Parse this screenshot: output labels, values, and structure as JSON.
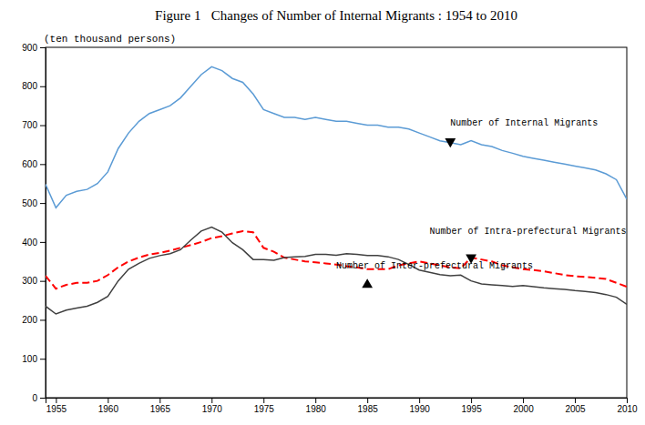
{
  "chart_data": {
    "type": "line",
    "title": "Figure 1   Changes of Number of Internal Migrants : 1954 to 2010",
    "ylabel": "(ten thousand persons)",
    "xlim": [
      1954,
      2010
    ],
    "xticks": [
      1955,
      1960,
      1965,
      1970,
      1975,
      1980,
      1985,
      1990,
      1995,
      2000,
      2005,
      2010
    ],
    "ylim": [
      0,
      900
    ],
    "yticks": [
      0,
      100,
      200,
      300,
      400,
      500,
      600,
      700,
      800,
      900
    ],
    "grid": false,
    "x": [
      1954,
      1955,
      1956,
      1957,
      1958,
      1959,
      1960,
      1961,
      1962,
      1963,
      1964,
      1965,
      1966,
      1967,
      1968,
      1969,
      1970,
      1971,
      1972,
      1973,
      1974,
      1975,
      1976,
      1977,
      1978,
      1979,
      1980,
      1981,
      1982,
      1983,
      1984,
      1985,
      1986,
      1987,
      1988,
      1989,
      1990,
      1991,
      1992,
      1993,
      1994,
      1995,
      1996,
      1997,
      1998,
      1999,
      2000,
      2001,
      2002,
      2003,
      2004,
      2005,
      2006,
      2007,
      2008,
      2009,
      2010
    ],
    "series": [
      {
        "color": "#5b9bd5",
        "line_style": "solid",
        "values": [
          548,
          488,
          520,
          530,
          535,
          550,
          580,
          640,
          680,
          710,
          730,
          740,
          750,
          770,
          800,
          830,
          850,
          840,
          820,
          810,
          780,
          740,
          730,
          720,
          720,
          715,
          720,
          715,
          710,
          710,
          705,
          700,
          700,
          695,
          695,
          690,
          680,
          670,
          660,
          655,
          650,
          660,
          650,
          645,
          635,
          628,
          620,
          615,
          610,
          605,
          600,
          595,
          590,
          585,
          575,
          560,
          510
        ]
      },
      {
        "color": "#ff0000",
        "line_style": "dashed",
        "values": [
          313,
          280,
          290,
          295,
          295,
          300,
          315,
          335,
          350,
          360,
          368,
          372,
          378,
          385,
          392,
          400,
          410,
          415,
          422,
          428,
          425,
          385,
          375,
          360,
          355,
          350,
          348,
          345,
          342,
          338,
          335,
          330,
          330,
          330,
          340,
          345,
          350,
          345,
          340,
          335,
          332,
          360,
          355,
          350,
          340,
          335,
          330,
          328,
          325,
          320,
          315,
          312,
          310,
          308,
          305,
          295,
          285
        ]
      },
      {
        "color": "#404040",
        "line_style": "solid",
        "values": [
          235,
          215,
          225,
          230,
          235,
          245,
          260,
          300,
          330,
          345,
          358,
          365,
          370,
          380,
          405,
          428,
          438,
          425,
          398,
          380,
          355,
          355,
          353,
          360,
          362,
          363,
          368,
          368,
          366,
          370,
          368,
          365,
          365,
          362,
          355,
          342,
          328,
          322,
          316,
          313,
          315,
          300,
          292,
          290,
          288,
          286,
          288,
          285,
          282,
          280,
          278,
          275,
          273,
          270,
          265,
          258,
          240
        ]
      }
    ],
    "annotations": [
      {
        "text": "Number of Internal Migrants",
        "marker": "triangle-down",
        "x": 1993,
        "y": 658,
        "text_x": 1993,
        "text_y": 693
      },
      {
        "text": "Number of Intra-prefectural Migrants",
        "marker": "triangle-down",
        "x": 1995,
        "y": 360,
        "text_x": 1991,
        "text_y": 415
      },
      {
        "text": "Number of Inter-prefectural Migrants",
        "marker": "triangle-up",
        "x": 1985,
        "y": 290,
        "text_x": 1982,
        "text_y": 325
      }
    ]
  }
}
